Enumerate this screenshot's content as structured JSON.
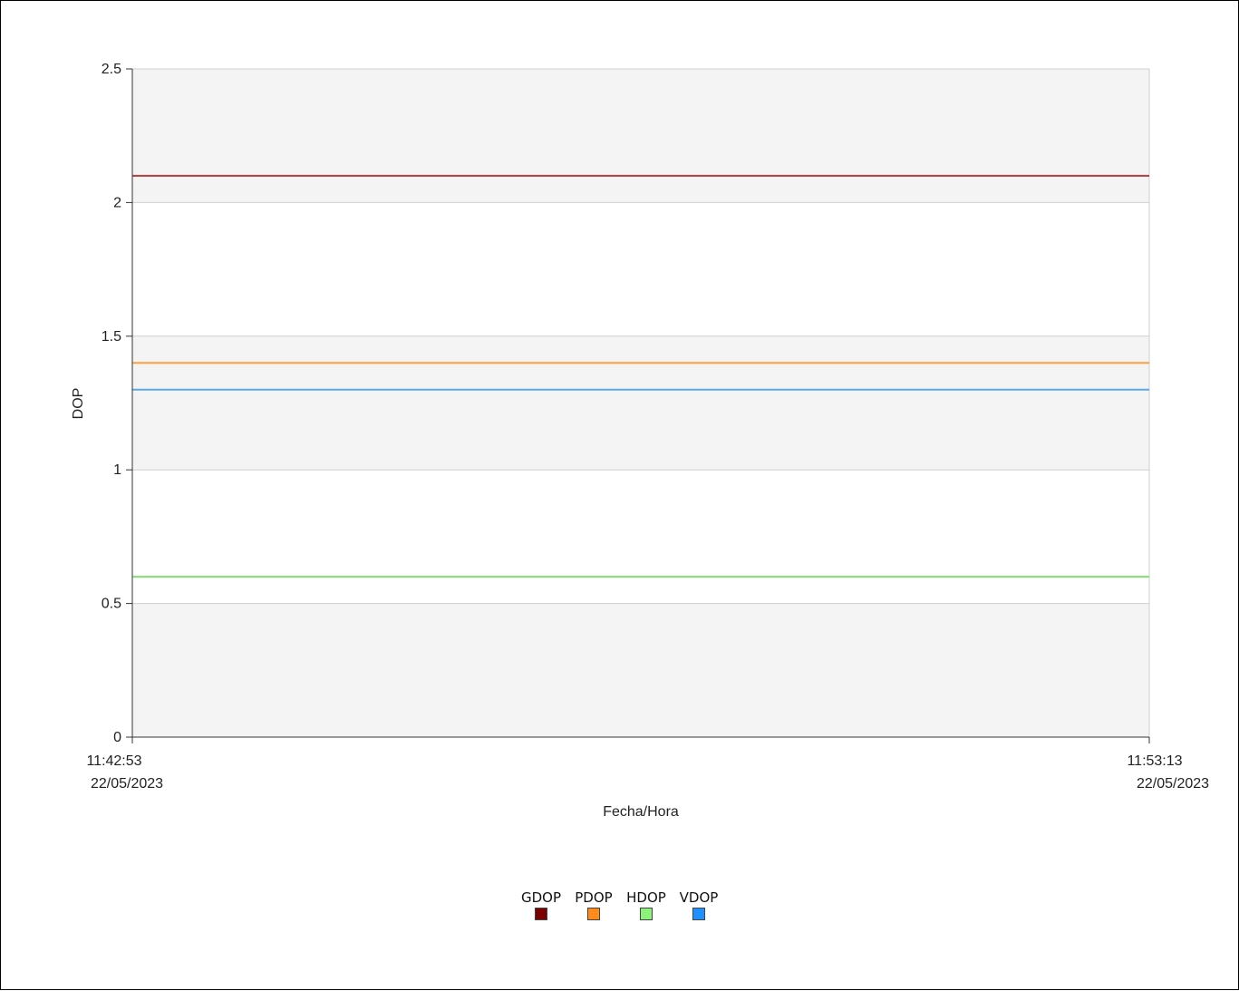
{
  "chart_data": {
    "type": "line",
    "ylabel": "DOP",
    "xlabel": "Fecha/Hora",
    "ylim": [
      0,
      2.5
    ],
    "yticks": [
      "0",
      "0.5",
      "1",
      "1.5",
      "2",
      "2.5"
    ],
    "x_range": [
      "22/05/2023 11:42:53",
      "22/05/2023 11:53:13"
    ],
    "xticks": [
      {
        "time": "11:42:53",
        "date": "22/05/2023"
      },
      {
        "time": "11:53:13",
        "date": "22/05/2023"
      }
    ],
    "grid": "horizontal, alternating bands",
    "legend_position": "bottom-center",
    "series": [
      {
        "name": "GDOP",
        "color": "#7b0000",
        "line_color": "#b04040",
        "x": [
          "22/05/2023 11:42:53",
          "22/05/2023 11:53:13"
        ],
        "values": [
          2.1,
          2.1
        ]
      },
      {
        "name": "PDOP",
        "color": "#ff8c1a",
        "line_color": "#ffa040",
        "x": [
          "22/05/2023 11:42:53",
          "22/05/2023 11:53:13"
        ],
        "values": [
          1.4,
          1.4
        ]
      },
      {
        "name": "HDOP",
        "color": "#8cf27a",
        "line_color": "#80e070",
        "x": [
          "22/05/2023 11:42:53",
          "22/05/2023 11:53:13"
        ],
        "values": [
          0.6,
          0.6
        ]
      },
      {
        "name": "VDOP",
        "color": "#1e90ff",
        "line_color": "#5aa8f0",
        "x": [
          "22/05/2023 11:42:53",
          "22/05/2023 11:53:13"
        ],
        "values": [
          1.3,
          1.3
        ]
      }
    ]
  }
}
